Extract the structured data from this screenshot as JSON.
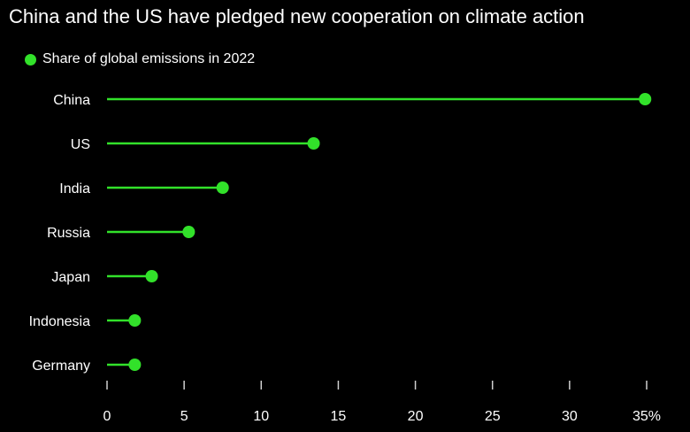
{
  "chart_data": {
    "type": "lollipop",
    "title": "China and the US have pledged new cooperation on climate action",
    "series": [
      {
        "name": "Share of global emissions in 2022",
        "color": "#32e12a"
      }
    ],
    "categories": [
      "China",
      "US",
      "India",
      "Russia",
      "Japan",
      "Indonesia",
      "Germany"
    ],
    "values": [
      34.9,
      13.4,
      7.5,
      5.3,
      2.9,
      1.8,
      1.8
    ],
    "xlim": [
      0,
      35
    ],
    "xticks": [
      0,
      5,
      10,
      15,
      20,
      25,
      30,
      35
    ],
    "xtick_labels": [
      "0",
      "5",
      "10",
      "15",
      "20",
      "25",
      "30",
      "35%"
    ],
    "grid": false,
    "legend_position": "top-left"
  }
}
